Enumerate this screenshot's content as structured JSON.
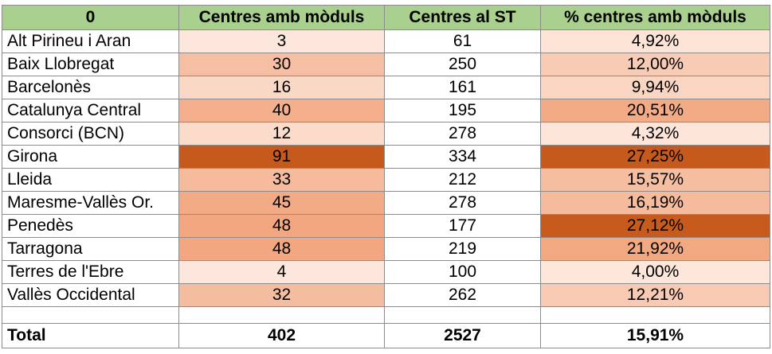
{
  "table": {
    "headers": [
      "0",
      "Centres amb mòduls",
      "Centres al ST",
      "% centres amb mòduls"
    ],
    "rows": [
      {
        "name": "Alt Pirineu i Aran",
        "modules": "3",
        "st": "61",
        "pct": "4,92%",
        "modules_color": "#fde7dc",
        "pct_color": "#fde4d6"
      },
      {
        "name": "Baix Llobregat",
        "modules": "30",
        "st": "250",
        "pct": "12,00%",
        "modules_color": "#f6bfa3",
        "pct_color": "#f8cbb5"
      },
      {
        "name": "Barcelonès",
        "modules": "16",
        "st": "161",
        "pct": "9,94%",
        "modules_color": "#fad8c6",
        "pct_color": "#fad5c2"
      },
      {
        "name": "Catalunya Central",
        "modules": "40",
        "st": "195",
        "pct": "20,51%",
        "modules_color": "#f4b08d",
        "pct_color": "#f3ab85"
      },
      {
        "name": "Consorci (BCN)",
        "modules": "12",
        "st": "278",
        "pct": "4,32%",
        "modules_color": "#fbdcca",
        "pct_color": "#fde6d9"
      },
      {
        "name": "Girona",
        "modules": "91",
        "st": "334",
        "pct": "27,25%",
        "modules_color": "#c65a1c",
        "pct_color": "#c65a1c"
      },
      {
        "name": "Lleida",
        "modules": "33",
        "st": "212",
        "pct": "15,57%",
        "modules_color": "#f5bb9c",
        "pct_color": "#f6bea0"
      },
      {
        "name": "Maresme-Vallès Or.",
        "modules": "45",
        "st": "278",
        "pct": "16,19%",
        "modules_color": "#f3ab85",
        "pct_color": "#f6bb9c"
      },
      {
        "name": "Penedès",
        "modules": "48",
        "st": "177",
        "pct": "27,12%",
        "modules_color": "#f2a780",
        "pct_color": "#c75b1d"
      },
      {
        "name": "Tarragona",
        "modules": "48",
        "st": "219",
        "pct": "21,92%",
        "modules_color": "#f2a780",
        "pct_color": "#f2a881"
      },
      {
        "name": "Terres de l'Ebre",
        "modules": "4",
        "st": "100",
        "pct": "4,00%",
        "modules_color": "#fde7dc",
        "pct_color": "#fde7da"
      },
      {
        "name": "Vallès Occidental",
        "modules": "32",
        "st": "262",
        "pct": "12,21%",
        "modules_color": "#f5bd9f",
        "pct_color": "#f8cab3"
      }
    ],
    "total": {
      "name": "Total",
      "modules": "402",
      "st": "2527",
      "pct": "15,91%"
    },
    "header_color": "#a9d08e"
  }
}
